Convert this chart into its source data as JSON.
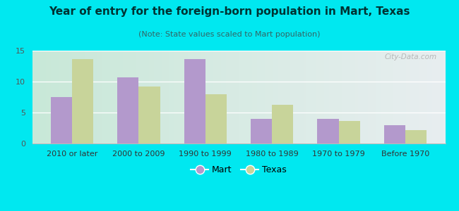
{
  "title": "Year of entry for the foreign-born population in Mart, Texas",
  "subtitle": "(Note: State values scaled to Mart population)",
  "categories": [
    "2010 or later",
    "2000 to 2009",
    "1990 to 1999",
    "1980 to 1989",
    "1970 to 1979",
    "Before 1970"
  ],
  "mart_values": [
    7.5,
    10.7,
    13.6,
    4.0,
    4.0,
    3.0
  ],
  "texas_values": [
    13.6,
    9.2,
    7.9,
    6.2,
    3.6,
    2.2
  ],
  "mart_color": "#b399cc",
  "texas_color": "#c8d49a",
  "background_outer": "#00e8f0",
  "background_inner_left": "#c8e8d8",
  "background_inner_right": "#e8eef0",
  "ylim": [
    0,
    15
  ],
  "yticks": [
    0,
    5,
    10,
    15
  ],
  "bar_width": 0.32,
  "legend_labels": [
    "Mart",
    "Texas"
  ],
  "watermark": "City-Data.com",
  "title_fontsize": 11,
  "subtitle_fontsize": 8,
  "tick_fontsize": 8,
  "legend_fontsize": 9
}
